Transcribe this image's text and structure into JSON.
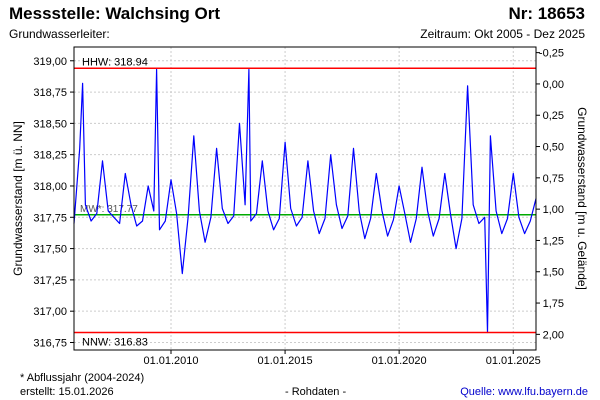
{
  "header": {
    "title": "Messstelle: Walchsing Ort",
    "number": "Nr: 18653",
    "aquifer": "Grundwasserleiter:",
    "period": "Zeitraum: Okt 2005 - Dez 2025"
  },
  "footer": {
    "note": "* Abflussjahr (2004-2024)",
    "created": "erstellt:  15.01.2026",
    "raw": "- Rohdaten -",
    "source": "Quelle: www.lfu.bayern.de"
  },
  "colors": {
    "series": "#0000ff",
    "limit": "#ff0000",
    "mean": "#00aa00",
    "grid": "#cccccc"
  },
  "chart_data": {
    "type": "line",
    "title": "",
    "ylabel": "Grundwasserstand [m ü. NN]",
    "ylabel_right": "Grundwasserstand [m u. Gelände]",
    "xlabel": "",
    "ylim": [
      316.69,
      319.11
    ],
    "ylim_right": [
      2.125,
      -0.295
    ],
    "xlim": [
      "2005-10-01",
      "2025-12-31"
    ],
    "yticks": [
      "316,75",
      "317,00",
      "317,25",
      "317,50",
      "317,75",
      "318,00",
      "318,25",
      "318,50",
      "318,75",
      "319,00"
    ],
    "ytick_values": [
      316.75,
      317.0,
      317.25,
      317.5,
      317.75,
      318.0,
      318.25,
      318.5,
      318.75,
      319.0
    ],
    "yticks_right": [
      "-0,25",
      "0,00",
      "0,25",
      "0,50",
      "0,75",
      "1,00",
      "1,25",
      "1,50",
      "1,75",
      "2,00"
    ],
    "ytick_right_values": [
      -0.25,
      0.0,
      0.25,
      0.5,
      0.75,
      1.0,
      1.25,
      1.5,
      1.75,
      2.0
    ],
    "xticks": [
      "01.01.2010",
      "01.01.2015",
      "01.01.2020",
      "01.01.2025"
    ],
    "xtick_values": [
      "2010-01-01",
      "2015-01-01",
      "2020-01-01",
      "2025-01-01"
    ],
    "grid": true,
    "hhw": {
      "label": "HHW: 318.94",
      "value": 318.94
    },
    "nnw": {
      "label": "NNW: 316.83",
      "value": 316.83
    },
    "mean_line": {
      "label": "MW*: 317.77",
      "value": 317.77
    },
    "series": [
      {
        "x": [
          "2005-10-01",
          "2006-01-01",
          "2006-02-15",
          "2006-04-01",
          "2006-07-01",
          "2006-10-01",
          "2007-01-01",
          "2007-04-01",
          "2007-07-01",
          "2007-10-01",
          "2008-01-01",
          "2008-04-01",
          "2008-07-01",
          "2008-10-01",
          "2009-01-01",
          "2009-04-01",
          "2009-05-15",
          "2009-07-01",
          "2009-10-01",
          "2010-01-01",
          "2010-04-01",
          "2010-07-01",
          "2010-10-01",
          "2011-01-01",
          "2011-04-01",
          "2011-07-01",
          "2011-10-01",
          "2012-01-01",
          "2012-04-01",
          "2012-07-01",
          "2012-10-01",
          "2013-01-01",
          "2013-04-01",
          "2013-06-01",
          "2013-07-01",
          "2013-10-01",
          "2014-01-01",
          "2014-04-01",
          "2014-07-01",
          "2014-10-01",
          "2015-01-01",
          "2015-04-01",
          "2015-07-01",
          "2015-10-01",
          "2016-01-01",
          "2016-04-01",
          "2016-07-01",
          "2016-10-01",
          "2017-01-01",
          "2017-04-01",
          "2017-07-01",
          "2017-10-01",
          "2018-01-01",
          "2018-04-01",
          "2018-07-01",
          "2018-10-01",
          "2019-01-01",
          "2019-04-01",
          "2019-07-01",
          "2019-10-01",
          "2020-01-01",
          "2020-04-01",
          "2020-07-01",
          "2020-10-01",
          "2021-01-01",
          "2021-04-01",
          "2021-07-01",
          "2021-10-01",
          "2022-01-01",
          "2022-04-01",
          "2022-07-01",
          "2022-10-01",
          "2023-01-01",
          "2023-04-01",
          "2023-07-01",
          "2023-10-01",
          "2023-11-15",
          "2024-01-01",
          "2024-04-01",
          "2024-07-01",
          "2024-10-01",
          "2025-01-01",
          "2025-04-01",
          "2025-07-01",
          "2025-10-01",
          "2025-12-31"
        ],
        "values": [
          317.7,
          318.3,
          318.82,
          317.85,
          317.72,
          317.78,
          318.2,
          317.8,
          317.75,
          317.7,
          318.1,
          317.85,
          317.68,
          317.72,
          318.0,
          317.8,
          318.93,
          317.65,
          317.72,
          318.05,
          317.78,
          317.3,
          317.75,
          318.4,
          317.8,
          317.55,
          317.75,
          318.3,
          317.82,
          317.7,
          317.76,
          318.5,
          317.85,
          318.93,
          317.72,
          317.78,
          318.2,
          317.8,
          317.65,
          317.74,
          318.35,
          317.82,
          317.68,
          317.75,
          318.2,
          317.8,
          317.62,
          317.74,
          318.25,
          317.85,
          317.66,
          317.76,
          318.3,
          317.8,
          317.58,
          317.74,
          318.1,
          317.8,
          317.6,
          317.73,
          318.0,
          317.78,
          317.55,
          317.74,
          318.15,
          317.8,
          317.6,
          317.74,
          318.1,
          317.78,
          317.5,
          317.74,
          318.8,
          317.85,
          317.7,
          317.75,
          316.83,
          318.4,
          317.8,
          317.62,
          317.74,
          318.1,
          317.75,
          317.62,
          317.72,
          317.9
        ]
      }
    ]
  }
}
